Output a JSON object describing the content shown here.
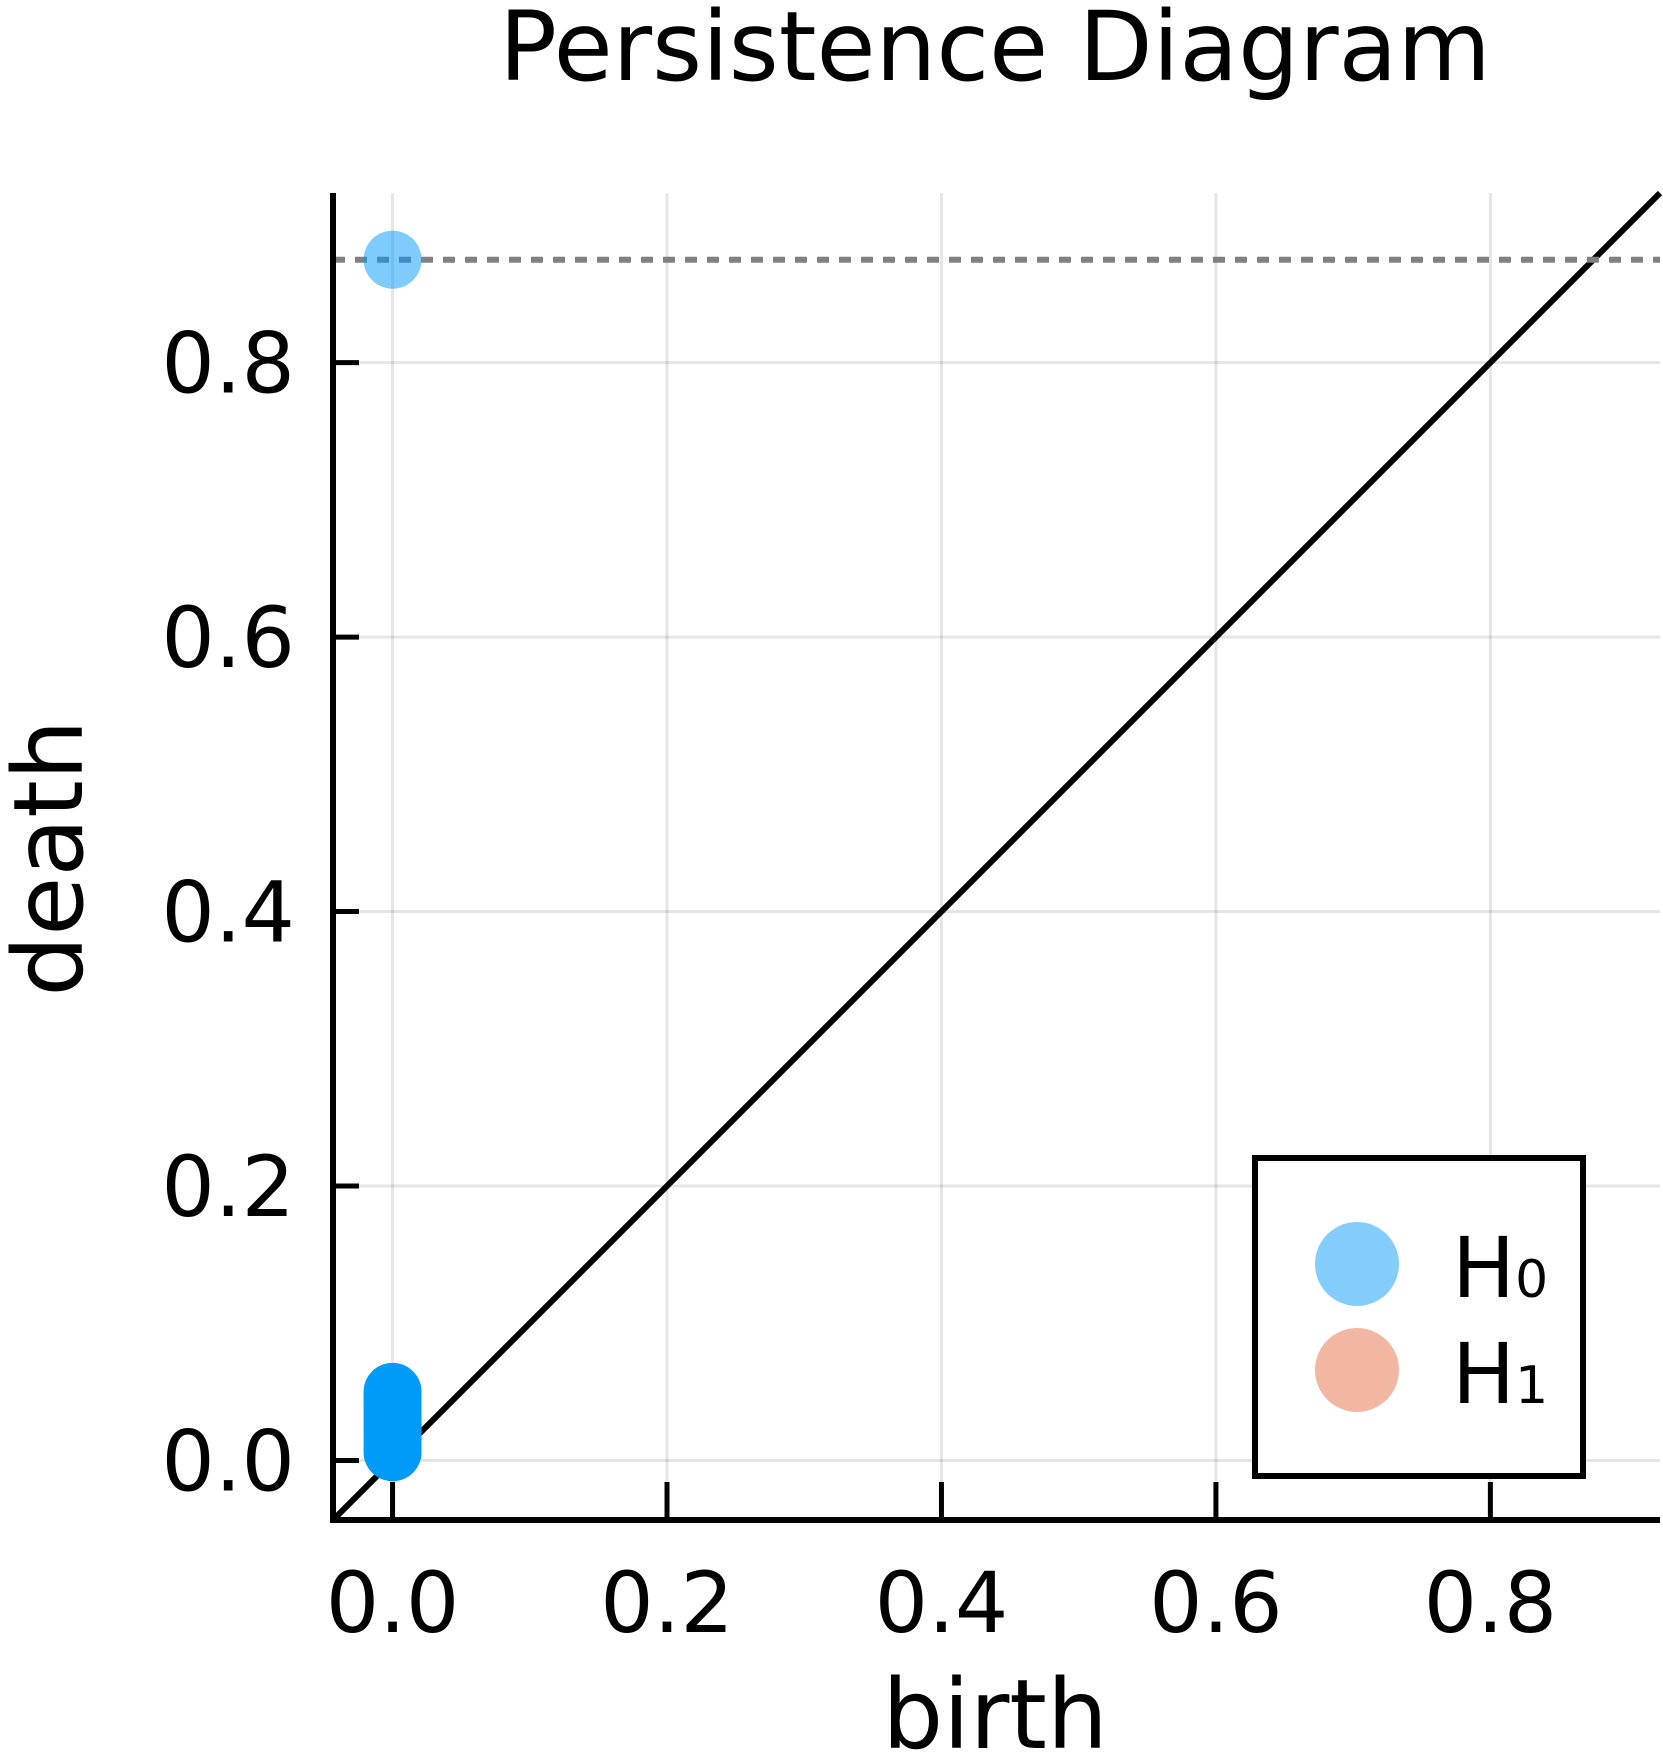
{
  "chart_data": {
    "type": "scatter",
    "title": "Persistence Diagram",
    "xlabel": "birth",
    "ylabel": "death",
    "xlim": [
      -0.0434,
      0.9236
    ],
    "ylim": [
      -0.0434,
      0.9236
    ],
    "xticks": [
      0.0,
      0.2,
      0.4,
      0.6,
      0.8
    ],
    "yticks": [
      0.0,
      0.2,
      0.4,
      0.6,
      0.8
    ],
    "xtick_labels": [
      "0.0",
      "0.2",
      "0.4",
      "0.6",
      "0.8"
    ],
    "ytick_labels": [
      "0.0",
      "0.2",
      "0.4",
      "0.6",
      "0.8"
    ],
    "grid": true,
    "diagonal": true,
    "infinity_line": 0.875,
    "legend_position": "bottom-right",
    "series": [
      {
        "name": "H₀",
        "label_base": "H",
        "label_sub": "0",
        "color": "#009af9",
        "points": [
          {
            "x": 0.0,
            "y": 0.875,
            "alpha": 0.5
          },
          {
            "x": 0.0,
            "y": 0.05,
            "alpha": 1.0
          },
          {
            "x": 0.0,
            "y": 0.047,
            "alpha": 1.0
          },
          {
            "x": 0.0,
            "y": 0.043,
            "alpha": 1.0
          },
          {
            "x": 0.0,
            "y": 0.04,
            "alpha": 1.0
          },
          {
            "x": 0.0,
            "y": 0.036,
            "alpha": 1.0
          },
          {
            "x": 0.0,
            "y": 0.032,
            "alpha": 1.0
          },
          {
            "x": 0.0,
            "y": 0.028,
            "alpha": 1.0
          },
          {
            "x": 0.0,
            "y": 0.024,
            "alpha": 1.0
          },
          {
            "x": 0.0,
            "y": 0.02,
            "alpha": 1.0
          },
          {
            "x": 0.0,
            "y": 0.015,
            "alpha": 1.0
          },
          {
            "x": 0.0,
            "y": 0.01,
            "alpha": 1.0
          },
          {
            "x": 0.0,
            "y": 0.006,
            "alpha": 1.0
          }
        ],
        "legend_color": "#84ccfc"
      },
      {
        "name": "H₁",
        "label_base": "H",
        "label_sub": "1",
        "color": "#e26f46",
        "points": [],
        "legend_color": "#f1b7a2"
      }
    ]
  }
}
